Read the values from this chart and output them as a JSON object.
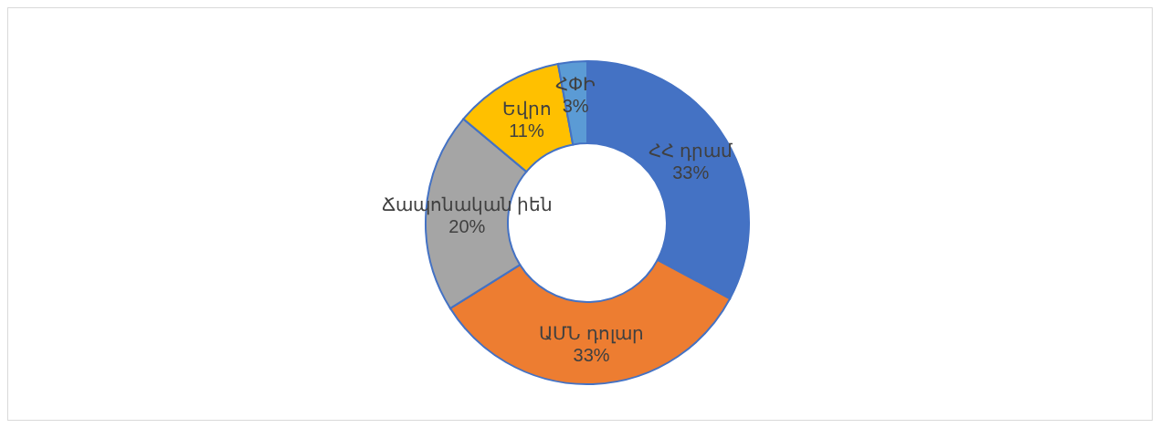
{
  "chart_data": {
    "type": "donut",
    "categories": [
      "ՀՀ դրամ",
      "ԱՄՆ դոլար",
      "Ճապոնական իեն",
      "Եվրո",
      "ՀՓԻ"
    ],
    "values": [
      32.8,
      33.3,
      20,
      11,
      2.9
    ],
    "colors": [
      "#4472c4",
      "#ed7d31",
      "#a5a5a5",
      "#ffc000",
      "#5b9bd5"
    ],
    "value_labels": [
      "33%",
      "33%",
      "20%",
      "11%",
      "3%"
    ],
    "legend": false
  }
}
